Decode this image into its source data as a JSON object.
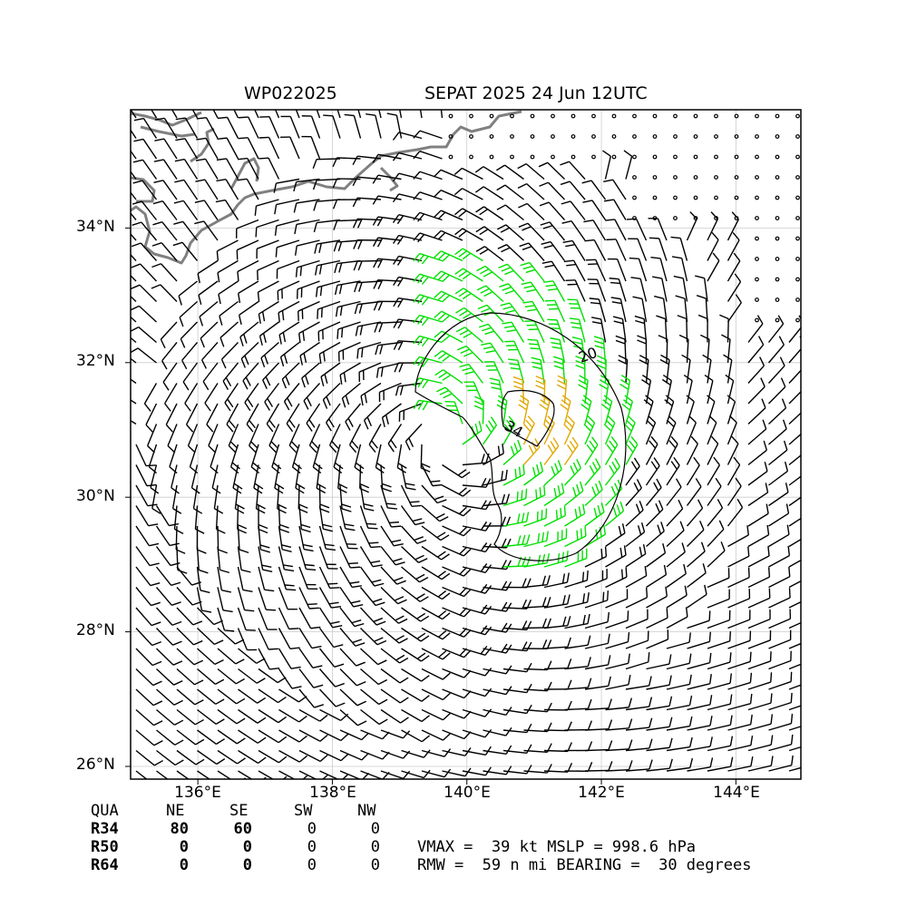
{
  "title": {
    "storm_id": "WP022025",
    "storm_desc": "SEPAT 2025 24 Jun 12UTC"
  },
  "map": {
    "lat_ticks": [
      "34°N",
      "32°N",
      "30°N",
      "28°N",
      "26°N"
    ],
    "lon_ticks": [
      "136°E",
      "138°E",
      "140°E",
      "142°E",
      "144°E"
    ],
    "contour_labels": [
      "20",
      "34"
    ],
    "colors": {
      "r34": "#00e000",
      "r50": "#e0a800",
      "barb": "#000000",
      "coast": "#808080"
    }
  },
  "radii_table": {
    "columns": [
      "QUA",
      "NE",
      "SE",
      "SW",
      "NW"
    ],
    "rows": [
      {
        "label": "R34",
        "values": [
          "80",
          "60",
          "0",
          "0"
        ]
      },
      {
        "label": "R50",
        "values": [
          "0",
          "0",
          "0",
          "0"
        ]
      },
      {
        "label": "R64",
        "values": [
          "0",
          "0",
          "0",
          "0"
        ]
      }
    ]
  },
  "stats": {
    "line1": "VMAX =  39 kt MSLP = 998.6 hPa",
    "line2": "RMW =  59 n mi BEARING =  30 degrees"
  }
}
